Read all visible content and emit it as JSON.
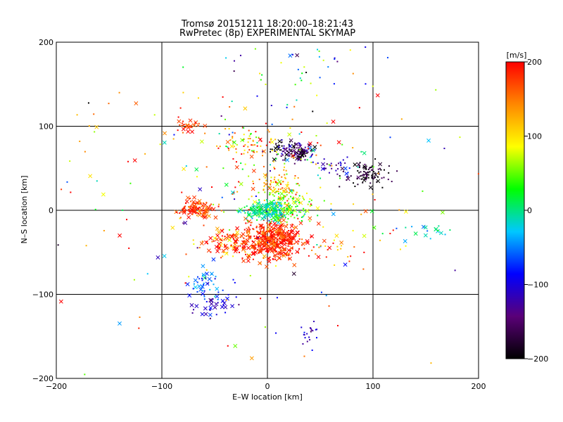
{
  "chart_data": {
    "type": "scatter",
    "title": "Tromsø 20151211 18:20:00–18:21:43",
    "subtitle": "RwPretec (8p) EXPERIMENTAL SKYMAP",
    "xlabel": "E–W location [km]",
    "ylabel": "N–S location [km]",
    "xlim": [
      -200,
      200
    ],
    "ylim": [
      -200,
      200
    ],
    "xticks": [
      "−200",
      "−100",
      "0",
      "100",
      "200"
    ],
    "yticks": [
      "−200",
      "−100",
      "0",
      "100",
      "200"
    ],
    "grid": true,
    "colorbar": {
      "label": "[m/s]",
      "range": [
        -200,
        200
      ],
      "ticks": [
        "−200",
        "−100",
        "0",
        "100",
        "200"
      ],
      "colors": [
        "#000000",
        "#5a0078",
        "#0000ff",
        "#00c8ff",
        "#00ff00",
        "#ffff00",
        "#ff8800",
        "#ff0000"
      ]
    },
    "marker_types": [
      "dot",
      "cross"
    ],
    "clusters": [
      {
        "cx": 5,
        "cy": -35,
        "sx": 14,
        "sy": 12,
        "n": 420,
        "v": 185,
        "vs": 25,
        "cross": 0.45
      },
      {
        "cx": -35,
        "cy": -38,
        "sx": 12,
        "sy": 8,
        "n": 90,
        "v": 170,
        "vs": 40,
        "cross": 0.35
      },
      {
        "cx": 0,
        "cy": 0,
        "sx": 10,
        "sy": 6,
        "n": 180,
        "v": 0,
        "vs": 25,
        "cross": 0.3
      },
      {
        "cx": 20,
        "cy": 4,
        "sx": 12,
        "sy": 8,
        "n": 120,
        "v": 40,
        "vs": 35,
        "cross": 0.15
      },
      {
        "cx": 12,
        "cy": 28,
        "sx": 10,
        "sy": 8,
        "n": 80,
        "v": 120,
        "vs": 40,
        "cross": 0.1
      },
      {
        "cx": -65,
        "cy": 0,
        "sx": 9,
        "sy": 6,
        "n": 110,
        "v": 180,
        "vs": 25,
        "cross": 0.35
      },
      {
        "cx": 25,
        "cy": 70,
        "sx": 10,
        "sy": 5,
        "n": 140,
        "v": -160,
        "vs": 40,
        "cross": 0.25
      },
      {
        "cx": 95,
        "cy": 42,
        "sx": 10,
        "sy": 8,
        "n": 90,
        "v": -185,
        "vs": 25,
        "cross": 0.1
      },
      {
        "cx": 65,
        "cy": 53,
        "sx": 10,
        "sy": 6,
        "n": 30,
        "v": -120,
        "vs": 30,
        "cross": 0.2
      },
      {
        "cx": -20,
        "cy": 80,
        "sx": 14,
        "sy": 8,
        "n": 60,
        "v": 130,
        "vs": 60,
        "cross": 0.2
      },
      {
        "cx": -75,
        "cy": 100,
        "sx": 8,
        "sy": 3,
        "n": 30,
        "v": 185,
        "vs": 25,
        "cross": 0.5
      },
      {
        "cx": -60,
        "cy": -90,
        "sx": 12,
        "sy": 10,
        "n": 50,
        "v": -60,
        "vs": 30,
        "cross": 0.3
      },
      {
        "cx": -50,
        "cy": -115,
        "sx": 10,
        "sy": 6,
        "n": 30,
        "v": -115,
        "vs": 20,
        "cross": 0.7
      },
      {
        "cx": 40,
        "cy": -145,
        "sx": 6,
        "sy": 8,
        "n": 20,
        "v": -110,
        "vs": 20,
        "cross": 0.0
      },
      {
        "cx": 155,
        "cy": -25,
        "sx": 18,
        "sy": 6,
        "n": 18,
        "v": -20,
        "vs": 30,
        "cross": 0.8
      },
      {
        "cx": 0,
        "cy": 60,
        "sx": 50,
        "sy": 40,
        "n": 120,
        "v": 100,
        "vs": 100,
        "cross": 0.1
      },
      {
        "cx": 0,
        "cy": 0,
        "sx": 110,
        "sy": 90,
        "n": 150,
        "v": 80,
        "vs": 120,
        "cross": 0.2
      },
      {
        "cx": 30,
        "cy": 170,
        "sx": 35,
        "sy": 20,
        "n": 35,
        "v": -40,
        "vs": 100,
        "cross": 0.1
      },
      {
        "cx": 50,
        "cy": -45,
        "sx": 35,
        "sy": 10,
        "n": 40,
        "v": 150,
        "vs": 60,
        "cross": 0.2
      },
      {
        "cx": -150,
        "cy": 50,
        "sx": 30,
        "sy": 60,
        "n": 20,
        "v": 140,
        "vs": 70,
        "cross": 0.5
      }
    ]
  }
}
